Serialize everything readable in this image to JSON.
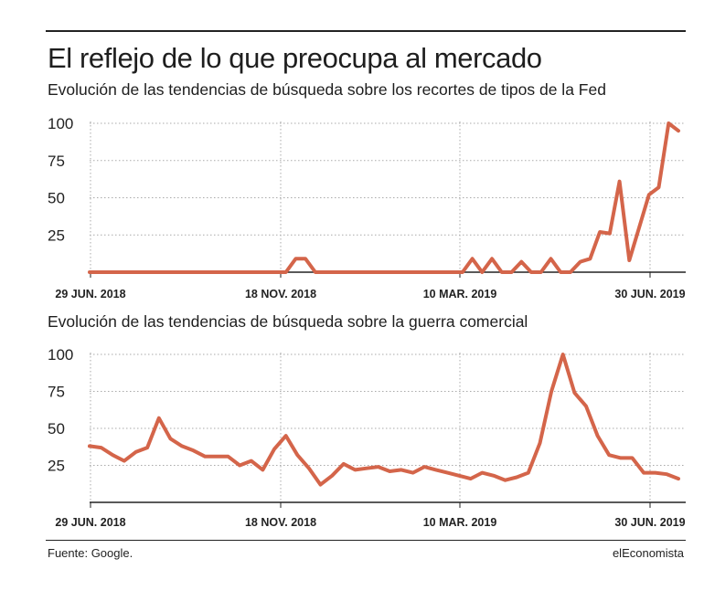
{
  "header": {
    "title": "El reflejo de lo que preocupa al mercado",
    "subtitle": "Evolución de las tendencias de búsqueda sobre los recortes de tipos de la Fed"
  },
  "footer": {
    "source": "Fuente: Google.",
    "brand": "elEconomista"
  },
  "colors": {
    "line": "#d4654a",
    "grid": "#aaaaaa",
    "axis": "#222222"
  },
  "chart_data": [
    {
      "type": "line",
      "title": "Evolución de las tendencias de búsqueda sobre los recortes de tipos de la Fed",
      "xlabel": "",
      "ylabel": "",
      "ylim": [
        0,
        100
      ],
      "yticks": [
        25,
        50,
        75,
        100
      ],
      "grid": true,
      "x_ticks": [
        "29 JUN. 2018",
        "18 NOV. 2018",
        "10 MAR. 2019",
        "30 JUN. 2019"
      ],
      "series": [
        {
          "values": [
            0,
            0,
            0,
            0,
            0,
            0,
            0,
            0,
            0,
            0,
            0,
            0,
            0,
            0,
            0,
            0,
            0,
            0,
            0,
            0,
            0,
            9,
            9,
            0,
            0,
            0,
            0,
            0,
            0,
            0,
            0,
            0,
            0,
            0,
            0,
            0,
            0,
            0,
            0,
            9,
            0,
            9,
            0,
            0,
            7,
            0,
            0,
            9,
            0,
            0,
            7,
            9,
            27,
            26,
            61,
            8,
            30,
            52,
            57,
            100,
            95
          ]
        }
      ]
    },
    {
      "type": "line",
      "title": "Evolución de las tendencias de búsqueda sobre la guerra comercial",
      "xlabel": "",
      "ylabel": "",
      "ylim": [
        0,
        100
      ],
      "yticks": [
        25,
        50,
        75,
        100
      ],
      "grid": true,
      "x_ticks": [
        "29 JUN. 2018",
        "18 NOV. 2018",
        "10 MAR. 2019",
        "30 JUN. 2019"
      ],
      "series": [
        {
          "values": [
            38,
            37,
            32,
            28,
            34,
            37,
            57,
            43,
            38,
            35,
            31,
            31,
            31,
            25,
            28,
            22,
            36,
            45,
            32,
            23,
            12,
            18,
            26,
            22,
            23,
            24,
            21,
            22,
            20,
            24,
            22,
            20,
            18,
            16,
            20,
            18,
            15,
            17,
            20,
            40,
            75,
            100,
            74,
            65,
            45,
            32,
            30,
            30,
            20,
            20,
            19,
            16
          ]
        }
      ]
    }
  ]
}
